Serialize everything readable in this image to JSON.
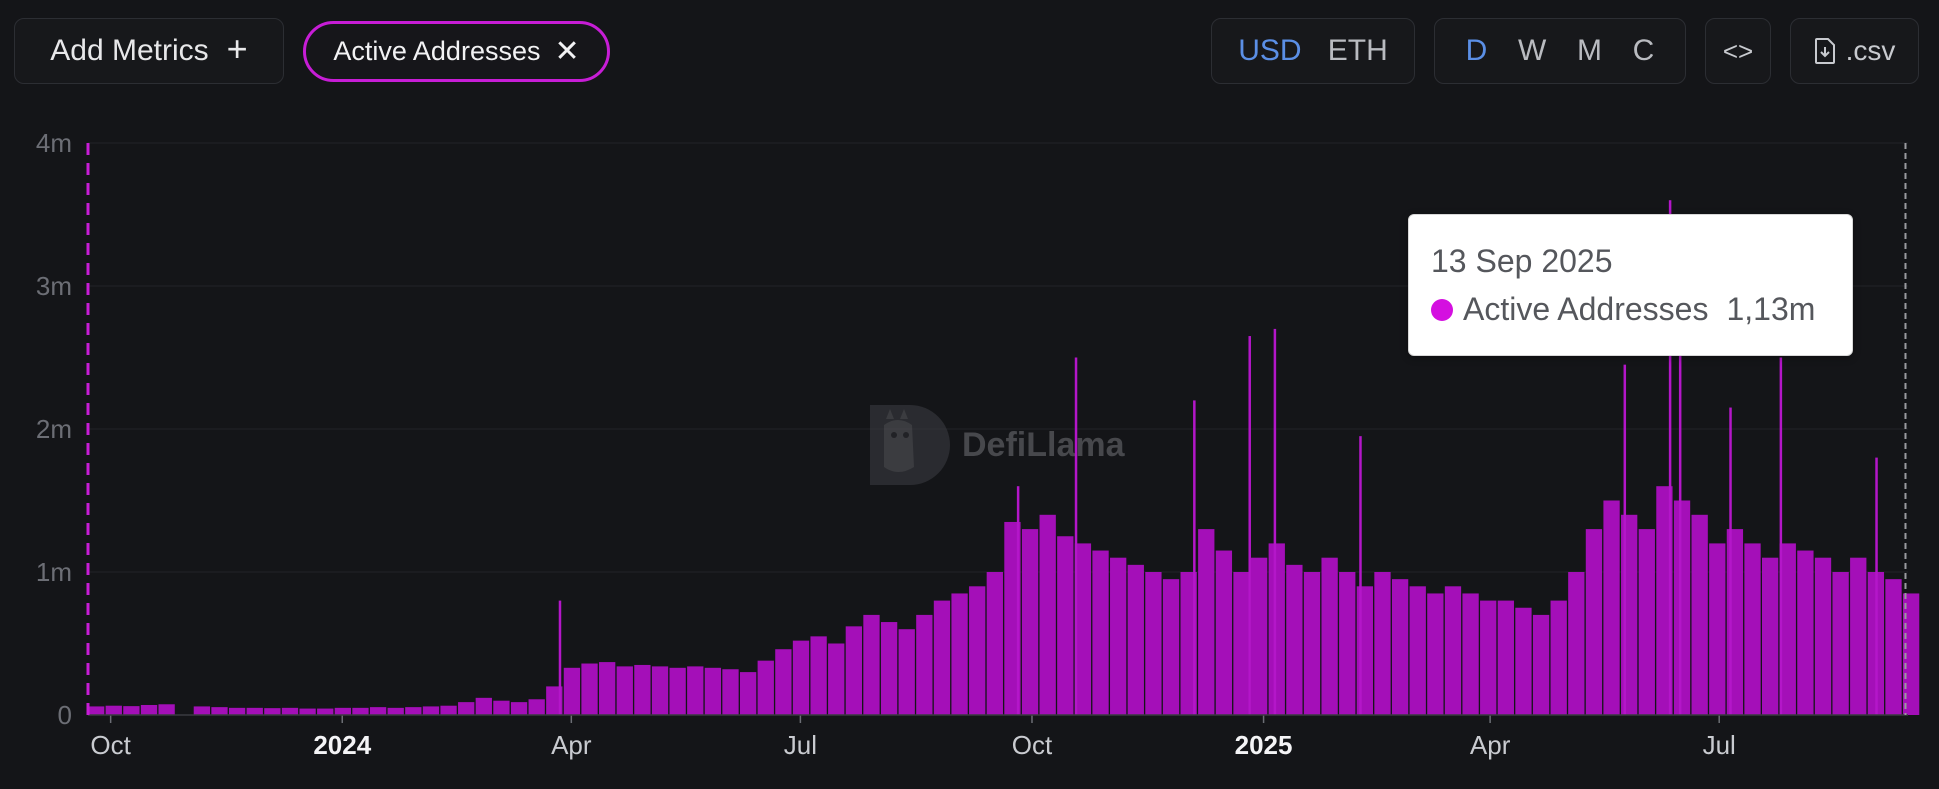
{
  "toolbar": {
    "add_metrics_label": "Add Metrics",
    "add_metrics_icon": "+",
    "chip_label": "Active Addresses",
    "chip_close_icon": "✕",
    "currency_options": [
      "USD",
      "ETH"
    ],
    "currency_selected": "USD",
    "interval_options": [
      "D",
      "W",
      "M",
      "C"
    ],
    "interval_selected": "D",
    "embed_icon": "<>",
    "csv_label": ".csv"
  },
  "colors": {
    "accent": "#c71dd6",
    "bar": "#a40fb8",
    "background": "#141518",
    "selected_toggle": "#5b8fe6"
  },
  "watermark": "DefiLlama",
  "tooltip": {
    "date": "13 Sep 2025",
    "series": "Active Addresses",
    "value": "1,13m"
  },
  "chart_data": {
    "type": "bar",
    "title": "",
    "xlabel": "",
    "ylabel": "",
    "ylim": [
      0,
      4000000
    ],
    "y_ticks": [
      "0",
      "1m",
      "2m",
      "3m",
      "4m"
    ],
    "x_ticks": [
      {
        "label": "Oct",
        "date": "2023-10-01",
        "major": false
      },
      {
        "label": "2024",
        "date": "2024-01-01",
        "major": true
      },
      {
        "label": "Apr",
        "date": "2024-04-01",
        "major": false
      },
      {
        "label": "Jul",
        "date": "2024-07-01",
        "major": false
      },
      {
        "label": "Oct",
        "date": "2024-10-01",
        "major": false
      },
      {
        "label": "2025",
        "date": "2025-01-01",
        "major": true
      },
      {
        "label": "Apr",
        "date": "2025-04-01",
        "major": false
      },
      {
        "label": "Jul",
        "date": "2025-07-01",
        "major": false
      }
    ],
    "x_range": [
      "2023-09-22",
      "2025-09-14"
    ],
    "series": [
      {
        "name": "Active Addresses",
        "interval": "weekly",
        "points": [
          {
            "date": "2023-09-22",
            "value": 60000
          },
          {
            "date": "2023-09-29",
            "value": 65000
          },
          {
            "date": "2023-10-06",
            "value": 62000
          },
          {
            "date": "2023-10-13",
            "value": 70000
          },
          {
            "date": "2023-10-20",
            "value": 75000
          },
          {
            "date": "2023-10-27",
            "value": 0
          },
          {
            "date": "2023-11-03",
            "value": 60000
          },
          {
            "date": "2023-11-10",
            "value": 55000
          },
          {
            "date": "2023-11-17",
            "value": 50000
          },
          {
            "date": "2023-11-24",
            "value": 50000
          },
          {
            "date": "2023-12-01",
            "value": 48000
          },
          {
            "date": "2023-12-08",
            "value": 50000
          },
          {
            "date": "2023-12-15",
            "value": 45000
          },
          {
            "date": "2023-12-22",
            "value": 45000
          },
          {
            "date": "2023-12-29",
            "value": 50000
          },
          {
            "date": "2024-01-05",
            "value": 50000
          },
          {
            "date": "2024-01-12",
            "value": 55000
          },
          {
            "date": "2024-01-19",
            "value": 50000
          },
          {
            "date": "2024-01-26",
            "value": 55000
          },
          {
            "date": "2024-02-02",
            "value": 60000
          },
          {
            "date": "2024-02-09",
            "value": 65000
          },
          {
            "date": "2024-02-16",
            "value": 90000
          },
          {
            "date": "2024-02-23",
            "value": 120000
          },
          {
            "date": "2024-03-01",
            "value": 100000
          },
          {
            "date": "2024-03-08",
            "value": 90000
          },
          {
            "date": "2024-03-15",
            "value": 110000
          },
          {
            "date": "2024-03-22",
            "value": 200000
          },
          {
            "date": "2024-03-29",
            "value": 330000
          },
          {
            "date": "2024-04-05",
            "value": 360000
          },
          {
            "date": "2024-04-12",
            "value": 370000
          },
          {
            "date": "2024-04-19",
            "value": 340000
          },
          {
            "date": "2024-04-26",
            "value": 350000
          },
          {
            "date": "2024-05-03",
            "value": 340000
          },
          {
            "date": "2024-05-10",
            "value": 330000
          },
          {
            "date": "2024-05-17",
            "value": 340000
          },
          {
            "date": "2024-05-24",
            "value": 330000
          },
          {
            "date": "2024-05-31",
            "value": 320000
          },
          {
            "date": "2024-06-07",
            "value": 300000
          },
          {
            "date": "2024-06-14",
            "value": 380000
          },
          {
            "date": "2024-06-21",
            "value": 460000
          },
          {
            "date": "2024-06-28",
            "value": 520000
          },
          {
            "date": "2024-07-05",
            "value": 550000
          },
          {
            "date": "2024-07-12",
            "value": 500000
          },
          {
            "date": "2024-07-19",
            "value": 620000
          },
          {
            "date": "2024-07-26",
            "value": 700000
          },
          {
            "date": "2024-08-02",
            "value": 650000
          },
          {
            "date": "2024-08-09",
            "value": 600000
          },
          {
            "date": "2024-08-16",
            "value": 700000
          },
          {
            "date": "2024-08-23",
            "value": 800000
          },
          {
            "date": "2024-08-30",
            "value": 850000
          },
          {
            "date": "2024-09-06",
            "value": 900000
          },
          {
            "date": "2024-09-13",
            "value": 1000000
          },
          {
            "date": "2024-09-20",
            "value": 1350000
          },
          {
            "date": "2024-09-27",
            "value": 1300000
          },
          {
            "date": "2024-10-04",
            "value": 1400000
          },
          {
            "date": "2024-10-11",
            "value": 1250000
          },
          {
            "date": "2024-10-18",
            "value": 1200000
          },
          {
            "date": "2024-10-25",
            "value": 1150000
          },
          {
            "date": "2024-11-01",
            "value": 1100000
          },
          {
            "date": "2024-11-08",
            "value": 1050000
          },
          {
            "date": "2024-11-15",
            "value": 1000000
          },
          {
            "date": "2024-11-22",
            "value": 950000
          },
          {
            "date": "2024-11-29",
            "value": 1000000
          },
          {
            "date": "2024-12-06",
            "value": 1300000
          },
          {
            "date": "2024-12-13",
            "value": 1150000
          },
          {
            "date": "2024-12-20",
            "value": 1000000
          },
          {
            "date": "2024-12-27",
            "value": 1100000
          },
          {
            "date": "2025-01-03",
            "value": 1200000
          },
          {
            "date": "2025-01-10",
            "value": 1050000
          },
          {
            "date": "2025-01-17",
            "value": 1000000
          },
          {
            "date": "2025-01-24",
            "value": 1100000
          },
          {
            "date": "2025-01-31",
            "value": 1000000
          },
          {
            "date": "2025-02-07",
            "value": 900000
          },
          {
            "date": "2025-02-14",
            "value": 1000000
          },
          {
            "date": "2025-02-21",
            "value": 950000
          },
          {
            "date": "2025-02-28",
            "value": 900000
          },
          {
            "date": "2025-03-07",
            "value": 850000
          },
          {
            "date": "2025-03-14",
            "value": 900000
          },
          {
            "date": "2025-03-21",
            "value": 850000
          },
          {
            "date": "2025-03-28",
            "value": 800000
          },
          {
            "date": "2025-04-04",
            "value": 800000
          },
          {
            "date": "2025-04-11",
            "value": 750000
          },
          {
            "date": "2025-04-18",
            "value": 700000
          },
          {
            "date": "2025-04-25",
            "value": 800000
          },
          {
            "date": "2025-05-02",
            "value": 1000000
          },
          {
            "date": "2025-05-09",
            "value": 1300000
          },
          {
            "date": "2025-05-16",
            "value": 1500000
          },
          {
            "date": "2025-05-23",
            "value": 1400000
          },
          {
            "date": "2025-05-30",
            "value": 1300000
          },
          {
            "date": "2025-06-06",
            "value": 1600000
          },
          {
            "date": "2025-06-13",
            "value": 1500000
          },
          {
            "date": "2025-06-20",
            "value": 1400000
          },
          {
            "date": "2025-06-27",
            "value": 1200000
          },
          {
            "date": "2025-07-04",
            "value": 1300000
          },
          {
            "date": "2025-07-11",
            "value": 1200000
          },
          {
            "date": "2025-07-18",
            "value": 1100000
          },
          {
            "date": "2025-07-25",
            "value": 1200000
          },
          {
            "date": "2025-08-01",
            "value": 1150000
          },
          {
            "date": "2025-08-08",
            "value": 1100000
          },
          {
            "date": "2025-08-15",
            "value": 1000000
          },
          {
            "date": "2025-08-22",
            "value": 1100000
          },
          {
            "date": "2025-08-29",
            "value": 1000000
          },
          {
            "date": "2025-09-05",
            "value": 950000
          },
          {
            "date": "2025-09-12",
            "value": 850000
          }
        ],
        "spikes": [
          {
            "date": "2024-03-27",
            "value": 800000
          },
          {
            "date": "2024-09-25",
            "value": 1600000
          },
          {
            "date": "2024-10-18",
            "value": 2500000
          },
          {
            "date": "2024-12-04",
            "value": 2200000
          },
          {
            "date": "2024-12-26",
            "value": 2650000
          },
          {
            "date": "2025-01-05",
            "value": 2700000
          },
          {
            "date": "2025-02-08",
            "value": 1950000
          },
          {
            "date": "2025-05-24",
            "value": 2450000
          },
          {
            "date": "2025-06-11",
            "value": 3600000
          },
          {
            "date": "2025-06-15",
            "value": 2800000
          },
          {
            "date": "2025-07-05",
            "value": 2150000
          },
          {
            "date": "2025-07-25",
            "value": 2500000
          },
          {
            "date": "2025-09-01",
            "value": 1800000
          }
        ]
      }
    ],
    "tooltip_date": "2025-09-13"
  }
}
